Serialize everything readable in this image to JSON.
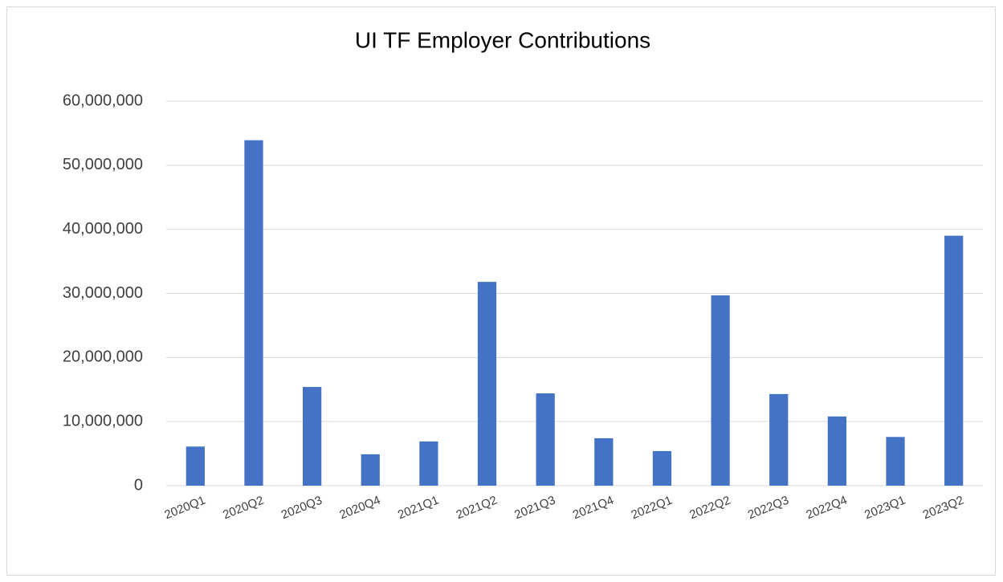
{
  "chart_data": {
    "type": "bar",
    "title": "UI TF Employer Contributions",
    "categories": [
      "2020Q1",
      "2020Q2",
      "2020Q3",
      "2020Q4",
      "2021Q1",
      "2021Q2",
      "2021Q3",
      "2021Q4",
      "2022Q1",
      "2022Q2",
      "2022Q3",
      "2022Q4",
      "2023Q1",
      "2023Q2"
    ],
    "values": [
      6100000,
      53900000,
      15400000,
      4900000,
      6900000,
      31800000,
      14400000,
      7400000,
      5400000,
      29700000,
      14300000,
      10800000,
      7600000,
      39000000
    ],
    "color": "#4472c4",
    "ylim": [
      0,
      60000000
    ],
    "yticks": [
      0,
      {
        "value": 10000000,
        "label": "10,000,000"
      },
      {
        "value": 20000000,
        "label": "20,000,000"
      },
      {
        "value": 30000000,
        "label": "30,000,000"
      },
      {
        "value": 40000000,
        "label": "40,000,000"
      },
      {
        "value": 50000000,
        "label": "50,000,000"
      },
      {
        "value": 60000000,
        "label": "60,000,000"
      }
    ],
    "grid": true
  }
}
